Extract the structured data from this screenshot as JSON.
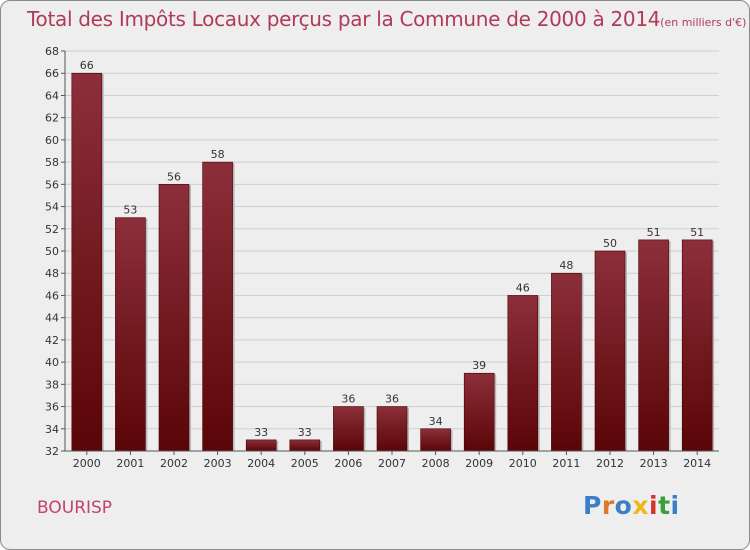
{
  "header": {
    "title": "Total des Impôts Locaux perçus par la Commune de 2000 à 2014",
    "unit": "(en milliers d'€)"
  },
  "footer": {
    "commune": "BOURISP",
    "logo": {
      "letters": [
        "P",
        "r",
        "o",
        "x",
        "i",
        "t",
        "i"
      ],
      "colors": [
        "#3a7fc8",
        "#e0762a",
        "#3a7fc8",
        "#f2b616",
        "#d8302a",
        "#3a9f3a",
        "#3a7fc8"
      ]
    }
  },
  "chart_data": {
    "type": "bar",
    "categories": [
      "2000",
      "2001",
      "2002",
      "2003",
      "2004",
      "2005",
      "2006",
      "2007",
      "2008",
      "2009",
      "2010",
      "2011",
      "2012",
      "2013",
      "2014"
    ],
    "values": [
      66,
      53,
      56,
      58,
      33,
      33,
      36,
      36,
      34,
      39,
      46,
      48,
      50,
      51,
      51
    ],
    "ylim": [
      32,
      68
    ],
    "yticks": [
      32,
      34,
      36,
      38,
      40,
      42,
      44,
      46,
      48,
      50,
      52,
      54,
      56,
      58,
      60,
      62,
      64,
      66,
      68
    ],
    "grid": true,
    "colors": {
      "bar_top": "#8c2f3a",
      "bar_bottom": "#5a0508"
    }
  }
}
